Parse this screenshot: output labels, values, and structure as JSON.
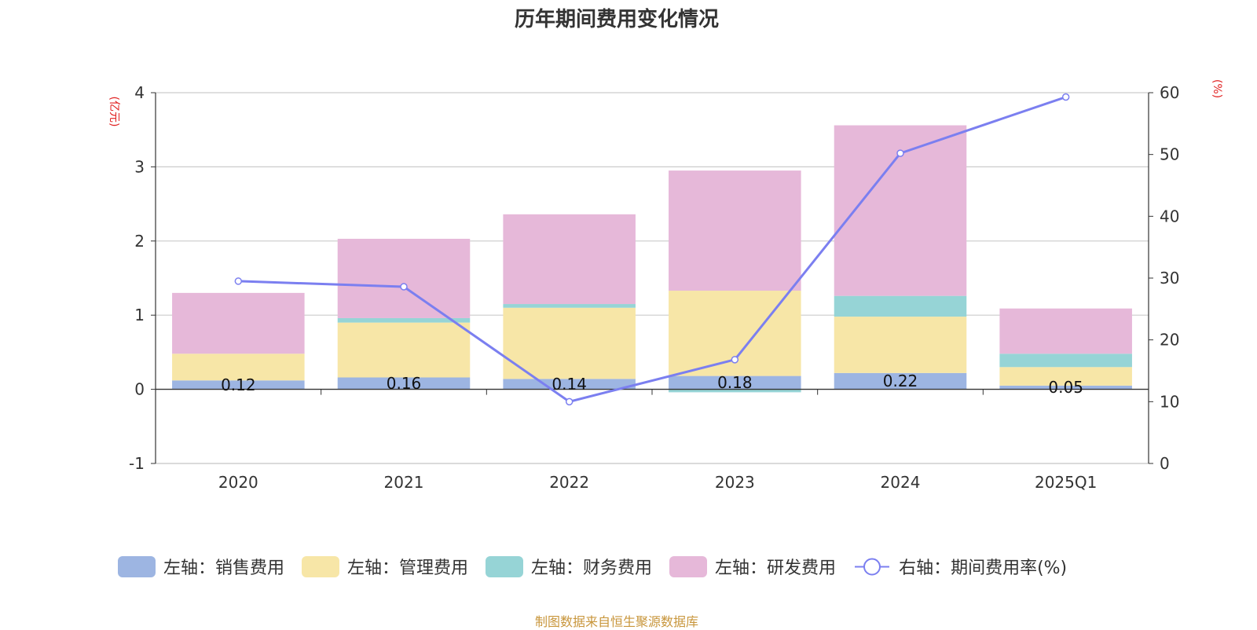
{
  "title": "历年期间费用变化情况",
  "footer": "制图数据来自恒生聚源数据库",
  "chart_data": {
    "type": "bar",
    "stacked": true,
    "categories": [
      "2020",
      "2021",
      "2022",
      "2023",
      "2024",
      "2025Q1"
    ],
    "left_axis": {
      "unit": "(亿元)",
      "ylim": [
        -1,
        4
      ],
      "ticks": [
        "-1",
        "0",
        "1",
        "2",
        "3",
        "4"
      ]
    },
    "right_axis": {
      "unit": "(%)",
      "ylim": [
        0,
        60
      ],
      "ticks": [
        "0",
        "10",
        "20",
        "30",
        "40",
        "50",
        "60"
      ]
    },
    "series": [
      {
        "name": "左轴：销售费用",
        "type": "bar",
        "axis": "left",
        "color": "#9db5e2",
        "values": [
          0.12,
          0.16,
          0.14,
          0.18,
          0.22,
          0.05
        ],
        "labels": [
          "0.12",
          "0.16",
          "0.14",
          "0.18",
          "0.22",
          "0.05"
        ]
      },
      {
        "name": "左轴：管理费用",
        "type": "bar",
        "axis": "left",
        "color": "#f7e6a7",
        "values": [
          0.36,
          0.74,
          0.96,
          1.15,
          0.76,
          0.25
        ]
      },
      {
        "name": "左轴：财务费用",
        "type": "bar",
        "axis": "left",
        "color": "#96d4d6",
        "values": [
          0.0,
          0.06,
          0.05,
          -0.04,
          0.28,
          0.18
        ]
      },
      {
        "name": "左轴：研发费用",
        "type": "bar",
        "axis": "left",
        "color": "#e6b8d9",
        "values": [
          0.82,
          1.07,
          1.21,
          1.62,
          2.3,
          0.61
        ]
      },
      {
        "name": "右轴：期间费用率(%)",
        "type": "line",
        "axis": "right",
        "color": "#7b7ff0",
        "values": [
          29.5,
          28.6,
          10.0,
          16.8,
          50.2,
          59.3
        ]
      }
    ]
  }
}
